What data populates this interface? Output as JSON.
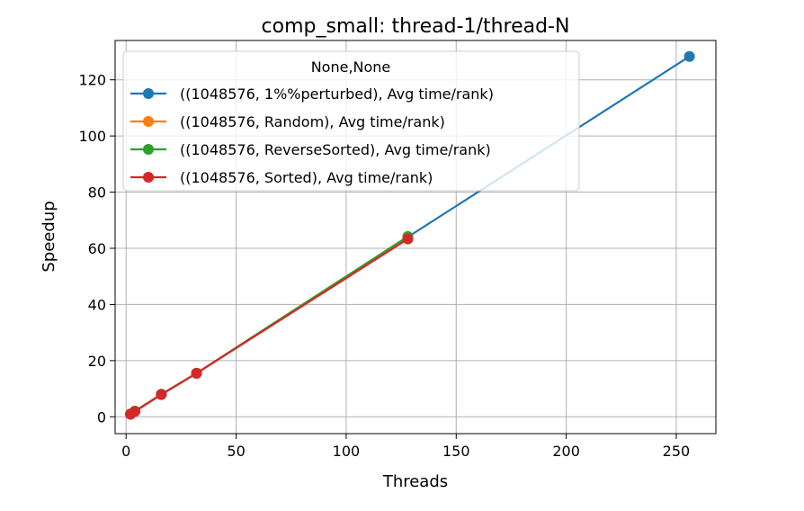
{
  "chart_data": {
    "type": "line",
    "title": "comp_small: thread-1/thread-N",
    "xlabel": "Threads",
    "ylabel": "Speedup",
    "xlim": [
      -5,
      268
    ],
    "ylim": [
      -6,
      134
    ],
    "xticks": [
      0,
      50,
      100,
      150,
      200,
      250
    ],
    "yticks": [
      0,
      20,
      40,
      60,
      80,
      100,
      120
    ],
    "xtick_labels": [
      "0",
      "50",
      "100",
      "150",
      "200",
      "250"
    ],
    "ytick_labels": [
      "0",
      "20",
      "40",
      "60",
      "80",
      "100",
      "120"
    ],
    "grid": true,
    "legend": {
      "title": "None,None",
      "placement": "upper-left"
    },
    "series": [
      {
        "name": "((1048576, 1%%perturbed), Avg time/rank)",
        "color": "#1f77b4",
        "x": [
          2,
          4,
          16,
          32,
          128,
          256
        ],
        "y": [
          1,
          2,
          8,
          15.5,
          64,
          128.3
        ]
      },
      {
        "name": "((1048576, Random), Avg time/rank)",
        "color": "#ff7f0e",
        "x": [
          2,
          4,
          16,
          32,
          128
        ],
        "y": [
          1,
          2,
          8,
          15.5,
          64
        ]
      },
      {
        "name": "((1048576, ReverseSorted), Avg time/rank)",
        "color": "#2ca02c",
        "x": [
          2,
          4,
          16,
          32,
          128
        ],
        "y": [
          1,
          2,
          8,
          15.5,
          64.2
        ]
      },
      {
        "name": "((1048576, Sorted), Avg time/rank)",
        "color": "#d62728",
        "x": [
          2,
          4,
          16,
          32,
          128
        ],
        "y": [
          0.9,
          1.9,
          7.9,
          15.5,
          63.3
        ]
      }
    ]
  }
}
